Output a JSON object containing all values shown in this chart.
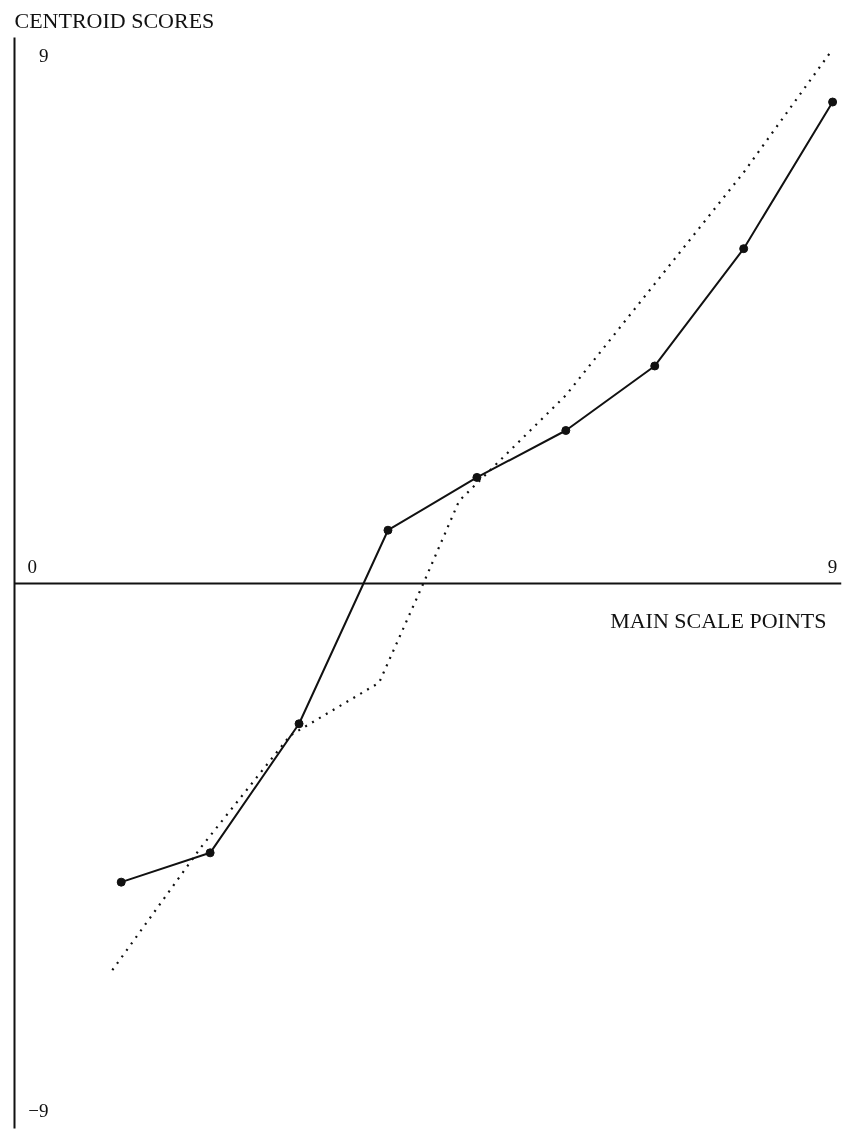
{
  "chart_data": {
    "type": "line",
    "xlabel": "MAIN SCALE POINTS",
    "ylabel": "CENTROID SCORES",
    "xlim": [
      -0.2,
      9.1
    ],
    "ylim": [
      -9.3,
      9.3
    ],
    "xticks": [
      0,
      9
    ],
    "yticks": [
      {
        "value": -9,
        "label": "−9"
      },
      {
        "value": 9,
        "label": "9"
      }
    ],
    "grid": false,
    "legend": false,
    "series": [
      {
        "color": "#111111",
        "marker": "circle",
        "line_style": "solid",
        "x": [
          1,
          2,
          3,
          4,
          5,
          6,
          7,
          8,
          9
        ],
        "values": [
          -5.1,
          -4.6,
          -2.4,
          0.9,
          1.8,
          2.6,
          3.7,
          5.7,
          8.2
        ]
      },
      {
        "color": "#111111",
        "marker": "none",
        "line_style": "dotted",
        "x": [
          0.9,
          1.9,
          2.9,
          3.9,
          4.4,
          4.8,
          5.4,
          6,
          7,
          8,
          9
        ],
        "values": [
          -6.6,
          -4.5,
          -2.6,
          -1.7,
          0,
          1.4,
          2.3,
          3.2,
          5.1,
          7,
          9.1
        ]
      }
    ]
  }
}
